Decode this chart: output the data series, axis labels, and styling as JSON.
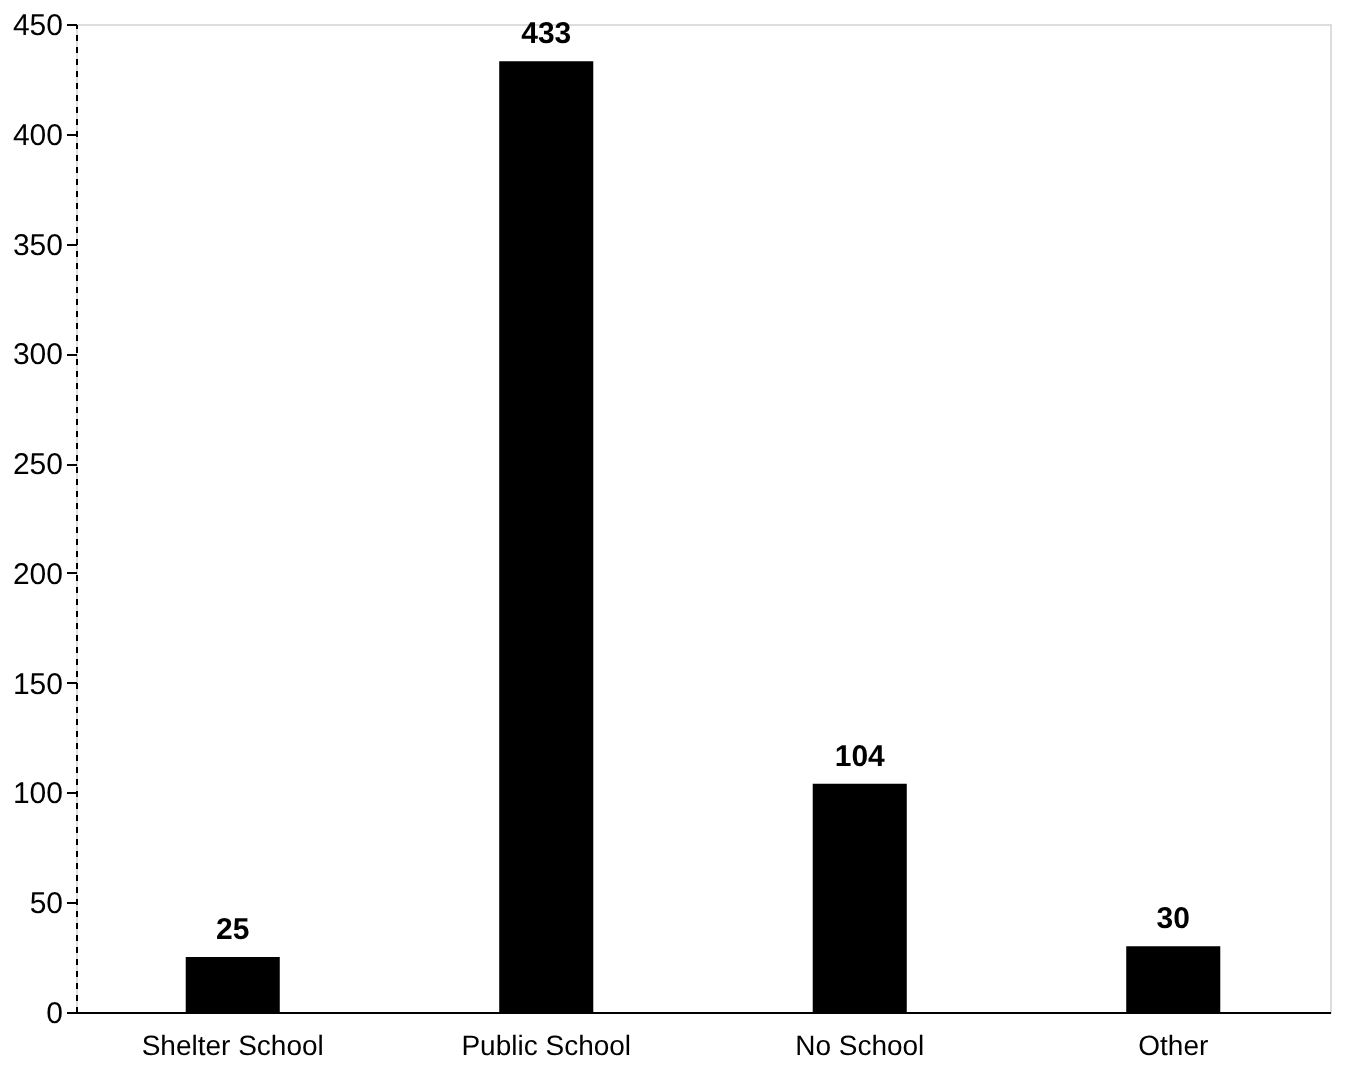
{
  "chart_data": {
    "type": "bar",
    "categories": [
      "Shelter School",
      "Public School",
      "No School",
      "Other"
    ],
    "values": [
      25,
      433,
      104,
      30
    ],
    "color": "#000000",
    "ylim": [
      0,
      450
    ],
    "yticks": [
      0,
      50,
      100,
      150,
      200,
      250,
      300,
      350,
      400,
      450
    ],
    "data_labels": true,
    "grid": false
  }
}
